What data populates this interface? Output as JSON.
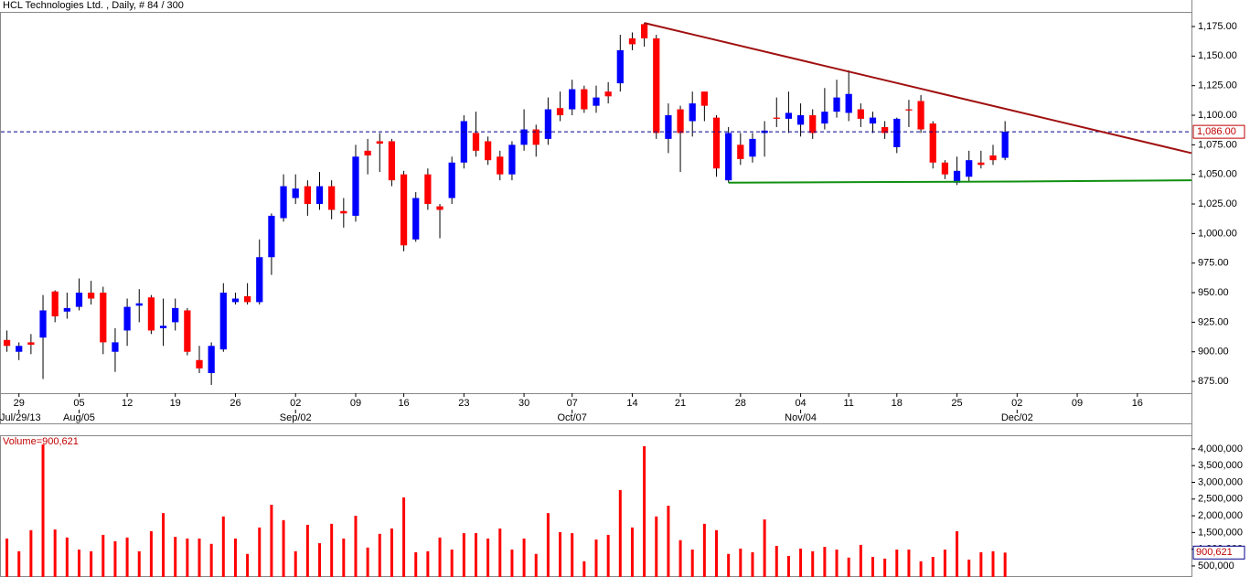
{
  "chart_data": [
    {
      "type": "candlestick",
      "title": "HCL Technologies Ltd. , Daily, # 84 / 300",
      "up_color": "#0000ff",
      "down_color": "#ff0000",
      "open": [
        910,
        900,
        908,
        912,
        951,
        934,
        938,
        950,
        950,
        900,
        918,
        939,
        946,
        920,
        925,
        935,
        893,
        882,
        902,
        942,
        947,
        942,
        980,
        1013,
        1030,
        1040,
        1025,
        1040,
        1019,
        1015,
        1070,
        1078,
        1078,
        1050,
        995,
        1050,
        1023,
        1030,
        1060,
        1085,
        1078,
        1065,
        1050,
        1075,
        1088,
        1080,
        1106,
        1105,
        1122,
        1108,
        1120,
        1127,
        1165,
        1177,
        1165,
        1080,
        1105,
        1095,
        1120,
        1098,
        1045,
        1075,
        1065,
        1085,
        1098,
        1097,
        1092,
        1100,
        1093,
        1103,
        1102,
        1105,
        1093,
        1090,
        1073,
        1105,
        1112,
        1093,
        1060,
        1043,
        1048,
        1060,
        1066,
        1064
      ],
      "high": [
        918,
        908,
        915,
        948,
        952,
        950,
        962,
        960,
        955,
        920,
        945,
        953,
        948,
        945,
        945,
        937,
        905,
        908,
        958,
        950,
        958,
        995,
        1017,
        1050,
        1050,
        1045,
        1052,
        1045,
        1030,
        1075,
        1080,
        1085,
        1080,
        1053,
        1035,
        1055,
        1025,
        1065,
        1100,
        1103,
        1082,
        1070,
        1078,
        1105,
        1092,
        1115,
        1120,
        1130,
        1125,
        1125,
        1128,
        1168,
        1170,
        1178,
        1168,
        1110,
        1108,
        1120,
        1120,
        1100,
        1090,
        1085,
        1085,
        1095,
        1115,
        1120,
        1110,
        1105,
        1123,
        1130,
        1138,
        1110,
        1103,
        1095,
        1098,
        1113,
        1117,
        1095,
        1062,
        1065,
        1070,
        1070,
        1075,
        1095
      ],
      "low": [
        900,
        893,
        898,
        877,
        925,
        928,
        935,
        940,
        898,
        883,
        905,
        925,
        915,
        905,
        918,
        897,
        882,
        872,
        900,
        940,
        940,
        940,
        965,
        1010,
        1025,
        1015,
        1020,
        1012,
        1005,
        1010,
        1050,
        1052,
        1040,
        985,
        993,
        1020,
        996,
        1025,
        1055,
        1065,
        1058,
        1045,
        1045,
        1070,
        1065,
        1075,
        1095,
        1100,
        1102,
        1102,
        1110,
        1120,
        1155,
        1158,
        1080,
        1068,
        1052,
        1082,
        1095,
        1048,
        1043,
        1058,
        1060,
        1065,
        1090,
        1085,
        1082,
        1080,
        1088,
        1098,
        1095,
        1090,
        1085,
        1080,
        1068,
        1090,
        1085,
        1055,
        1046,
        1041,
        1044,
        1055,
        1058,
        1062
      ],
      "close": [
        905,
        905,
        906,
        935,
        930,
        937,
        950,
        945,
        908,
        908,
        938,
        941,
        918,
        922,
        937,
        900,
        886,
        905,
        950,
        945,
        942,
        980,
        1015,
        1040,
        1038,
        1025,
        1040,
        1020,
        1017,
        1065,
        1066,
        1076,
        1045,
        990,
        1030,
        1025,
        1020,
        1060,
        1095,
        1070,
        1062,
        1050,
        1075,
        1088,
        1075,
        1105,
        1100,
        1122,
        1105,
        1115,
        1116,
        1155,
        1160,
        1165,
        1085,
        1100,
        1085,
        1110,
        1108,
        1055,
        1085,
        1063,
        1080,
        1087,
        1097,
        1102,
        1100,
        1085,
        1103,
        1115,
        1118,
        1097,
        1098,
        1085,
        1097,
        1104,
        1088,
        1060,
        1050,
        1053,
        1062,
        1058,
        1062,
        1086
      ],
      "close_label": "1,086.00",
      "xlim": [
        -0.5,
        98.5
      ],
      "xticks": [
        {
          "value": 1,
          "label": "29"
        },
        {
          "value": 6,
          "label": "05"
        },
        {
          "value": 10,
          "label": "12"
        },
        {
          "value": 14,
          "label": "19"
        },
        {
          "value": 19,
          "label": "26"
        },
        {
          "value": 24,
          "label": "02"
        },
        {
          "value": 29,
          "label": "09"
        },
        {
          "value": 33,
          "label": "16"
        },
        {
          "value": 38,
          "label": "23"
        },
        {
          "value": 43,
          "label": "30"
        },
        {
          "value": 47,
          "label": "07"
        },
        {
          "value": 52,
          "label": "14"
        },
        {
          "value": 56,
          "label": "21"
        },
        {
          "value": 61,
          "label": "28"
        },
        {
          "value": 66,
          "label": "04"
        },
        {
          "value": 70,
          "label": "11"
        },
        {
          "value": 74,
          "label": "18"
        },
        {
          "value": 79,
          "label": "25"
        },
        {
          "value": 84,
          "label": "02"
        },
        {
          "value": 89,
          "label": "09"
        },
        {
          "value": 94,
          "label": "16"
        }
      ],
      "xticks_major": [
        {
          "value": 1,
          "label": "Jul/29/13"
        },
        {
          "value": 6,
          "label": "Aug/05"
        },
        {
          "value": 24,
          "label": "Sep/02"
        },
        {
          "value": 47,
          "label": "Oct/07"
        },
        {
          "value": 66,
          "label": "Nov/04"
        },
        {
          "value": 84,
          "label": "Dec/02"
        }
      ],
      "ylim": [
        865,
        1186.6
      ],
      "yticks": [
        {
          "value": 875,
          "label": "875.00"
        },
        {
          "value": 900,
          "label": "900.00"
        },
        {
          "value": 925,
          "label": "925.00"
        },
        {
          "value": 950,
          "label": "950.00"
        },
        {
          "value": 975,
          "label": "975.00"
        },
        {
          "value": 1000,
          "label": "1,000.00"
        },
        {
          "value": 1025,
          "label": "1,025.00"
        },
        {
          "value": 1050,
          "label": "1,050.00"
        },
        {
          "value": 1075,
          "label": "1,075.00"
        },
        {
          "value": 1100,
          "label": "1,100.00"
        },
        {
          "value": 1125,
          "label": "1,125.00"
        },
        {
          "value": 1150,
          "label": "1,150.00"
        },
        {
          "value": 1175,
          "label": "1,175.00"
        }
      ],
      "trendlines": [
        {
          "color": "#a01010",
          "x": [
            53,
            98.5
          ],
          "y": [
            1178,
            1068
          ]
        },
        {
          "color": "#109010",
          "x": [
            60,
            71,
            84,
            98.5
          ],
          "y": [
            1043,
            1043.5,
            1044,
            1045
          ]
        }
      ]
    },
    {
      "type": "bar",
      "title": "Volume=900,621",
      "color": "#ff0000",
      "values": [
        1320000,
        940000,
        1570000,
        4130000,
        1590000,
        1350000,
        990000,
        940000,
        1430000,
        1240000,
        1350000,
        940000,
        1540000,
        2080000,
        1370000,
        1320000,
        1320000,
        1160000,
        1980000,
        1320000,
        860000,
        1650000,
        2330000,
        1870000,
        940000,
        1730000,
        1180000,
        1760000,
        1320000,
        2000000,
        1050000,
        1460000,
        1620000,
        2550000,
        910000,
        940000,
        1350000,
        990000,
        1480000,
        1480000,
        1320000,
        1620000,
        990000,
        1320000,
        860000,
        2080000,
        1510000,
        1480000,
        640000,
        1290000,
        1430000,
        2770000,
        1650000,
        4080000,
        1980000,
        2300000,
        1270000,
        990000,
        1760000,
        1570000,
        860000,
        1020000,
        910000,
        1890000,
        1100000,
        800000,
        1020000,
        940000,
        1070000,
        990000,
        750000,
        1130000,
        770000,
        720000,
        990000,
        990000,
        640000,
        770000,
        990000,
        1540000,
        690000,
        910000,
        940000,
        900621
      ],
      "last_value_label": "900,621",
      "ylim": [
        170000,
        4380000
      ],
      "yticks": [
        {
          "value": 500000,
          "label": "500,000"
        },
        {
          "value": 1000000,
          "label": "1,000,000"
        },
        {
          "value": 1500000,
          "label": "1,500,000"
        },
        {
          "value": 2000000,
          "label": "2,000,000"
        },
        {
          "value": 2500000,
          "label": "2,500,000"
        },
        {
          "value": 3000000,
          "label": "3,000,000"
        },
        {
          "value": 3500000,
          "label": "3,500,000"
        },
        {
          "value": 4000000,
          "label": "4,000,000"
        }
      ]
    }
  ]
}
